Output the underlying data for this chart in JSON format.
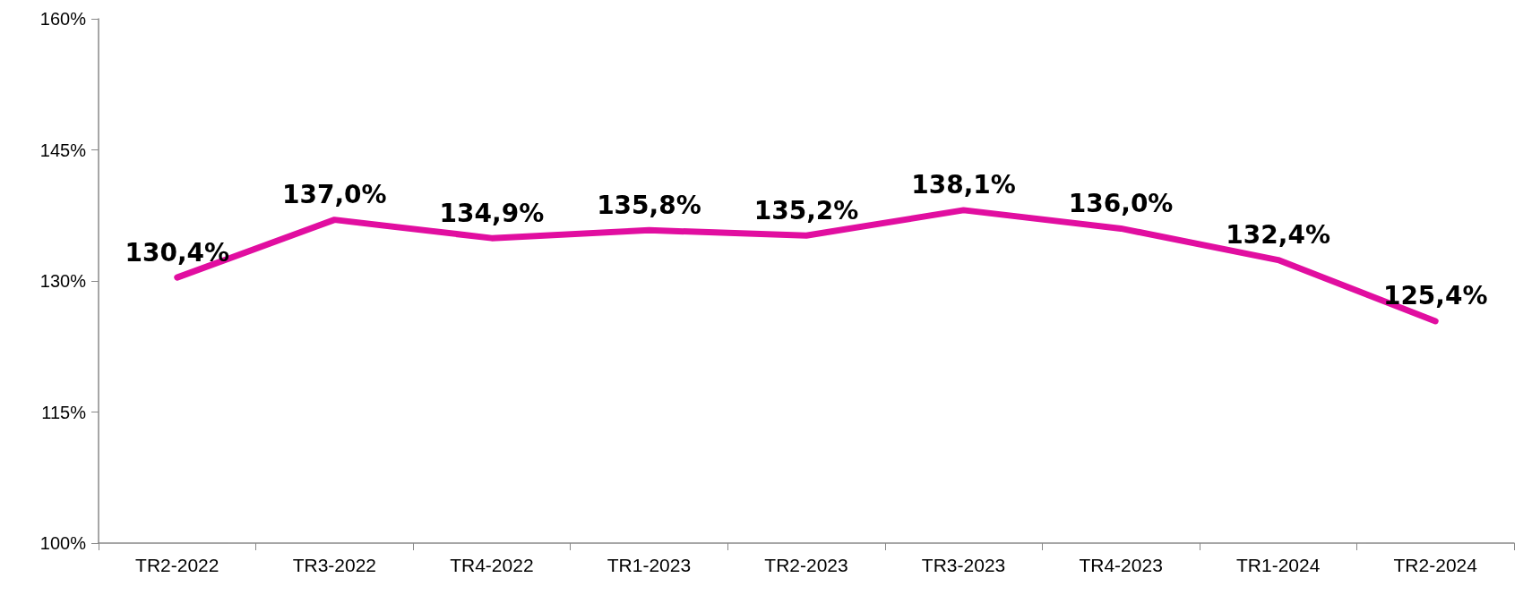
{
  "chart_data": {
    "type": "line",
    "categories": [
      "TR2-2022",
      "TR3-2022",
      "TR4-2022",
      "TR1-2023",
      "TR2-2023",
      "TR3-2023",
      "TR4-2023",
      "TR1-2024",
      "TR2-2024"
    ],
    "series": [
      {
        "color": "#e10ea0",
        "values": [
          130.4,
          137.0,
          134.9,
          135.8,
          135.2,
          138.1,
          136.0,
          132.4,
          125.4
        ],
        "value_labels": [
          "130,4%",
          "137,0%",
          "134,9%",
          "135,8%",
          "135,2%",
          "138,1%",
          "136,0%",
          "132,4%",
          "125,4%"
        ]
      }
    ],
    "ylim": [
      100,
      160
    ],
    "yticks": [
      {
        "value": 100,
        "label": "100%"
      },
      {
        "value": 115,
        "label": "115%"
      },
      {
        "value": 130,
        "label": "130%"
      },
      {
        "value": 145,
        "label": "145%"
      },
      {
        "value": 160,
        "label": "160%"
      }
    ],
    "grid": false,
    "marker": "none",
    "line_style": "solid"
  }
}
